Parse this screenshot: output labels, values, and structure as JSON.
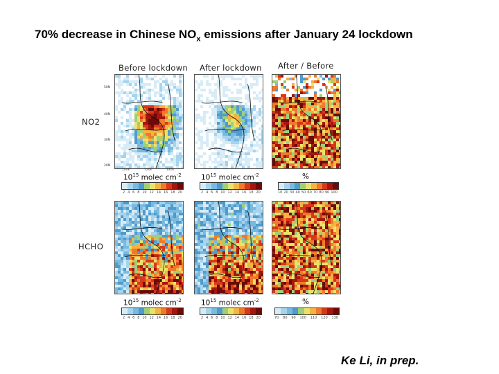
{
  "title": {
    "before_sub": "70% decrease in Chinese NO",
    "sub": "x",
    "after_sub": " emissions after January 24 lockdown"
  },
  "columns": [
    "Before lockdown",
    "After lockdown",
    "After / Before"
  ],
  "rows": [
    "NO2",
    "HCHO"
  ],
  "units": {
    "col_prefix": "10",
    "col_exp": "15",
    "col_suffix": " molec cm",
    "col_exp2": "-2",
    "ratio": "%"
  },
  "colorbar_ticks": {
    "no2": [
      "2",
      "4",
      "6",
      "8",
      "10",
      "12",
      "14",
      "16",
      "18",
      "20"
    ],
    "no2_ratio": [
      "10",
      "20",
      "30",
      "40",
      "50",
      "60",
      "70",
      "80",
      "90",
      "100"
    ],
    "hcho": [
      "2",
      "4",
      "6",
      "8",
      "10",
      "12",
      "14",
      "16",
      "18",
      "20"
    ],
    "hcho_ratio": [
      "70",
      "80",
      "90",
      "100",
      "110",
      "120",
      "130"
    ]
  },
  "axis_ticks": {
    "lat": [
      "50N",
      "40N",
      "30N",
      "20N"
    ],
    "lon": [
      "100E",
      "120E",
      "140E"
    ]
  },
  "colors": {
    "scale": [
      "#ffffff",
      "#d7ecf7",
      "#a6d4ee",
      "#7ab9e0",
      "#4e9bcc",
      "#9fcf7a",
      "#e9e36a",
      "#f6b243",
      "#ef7a2a",
      "#d8371c",
      "#a4160e",
      "#6b0a07"
    ]
  },
  "citation": "Ke Li, in prep."
}
